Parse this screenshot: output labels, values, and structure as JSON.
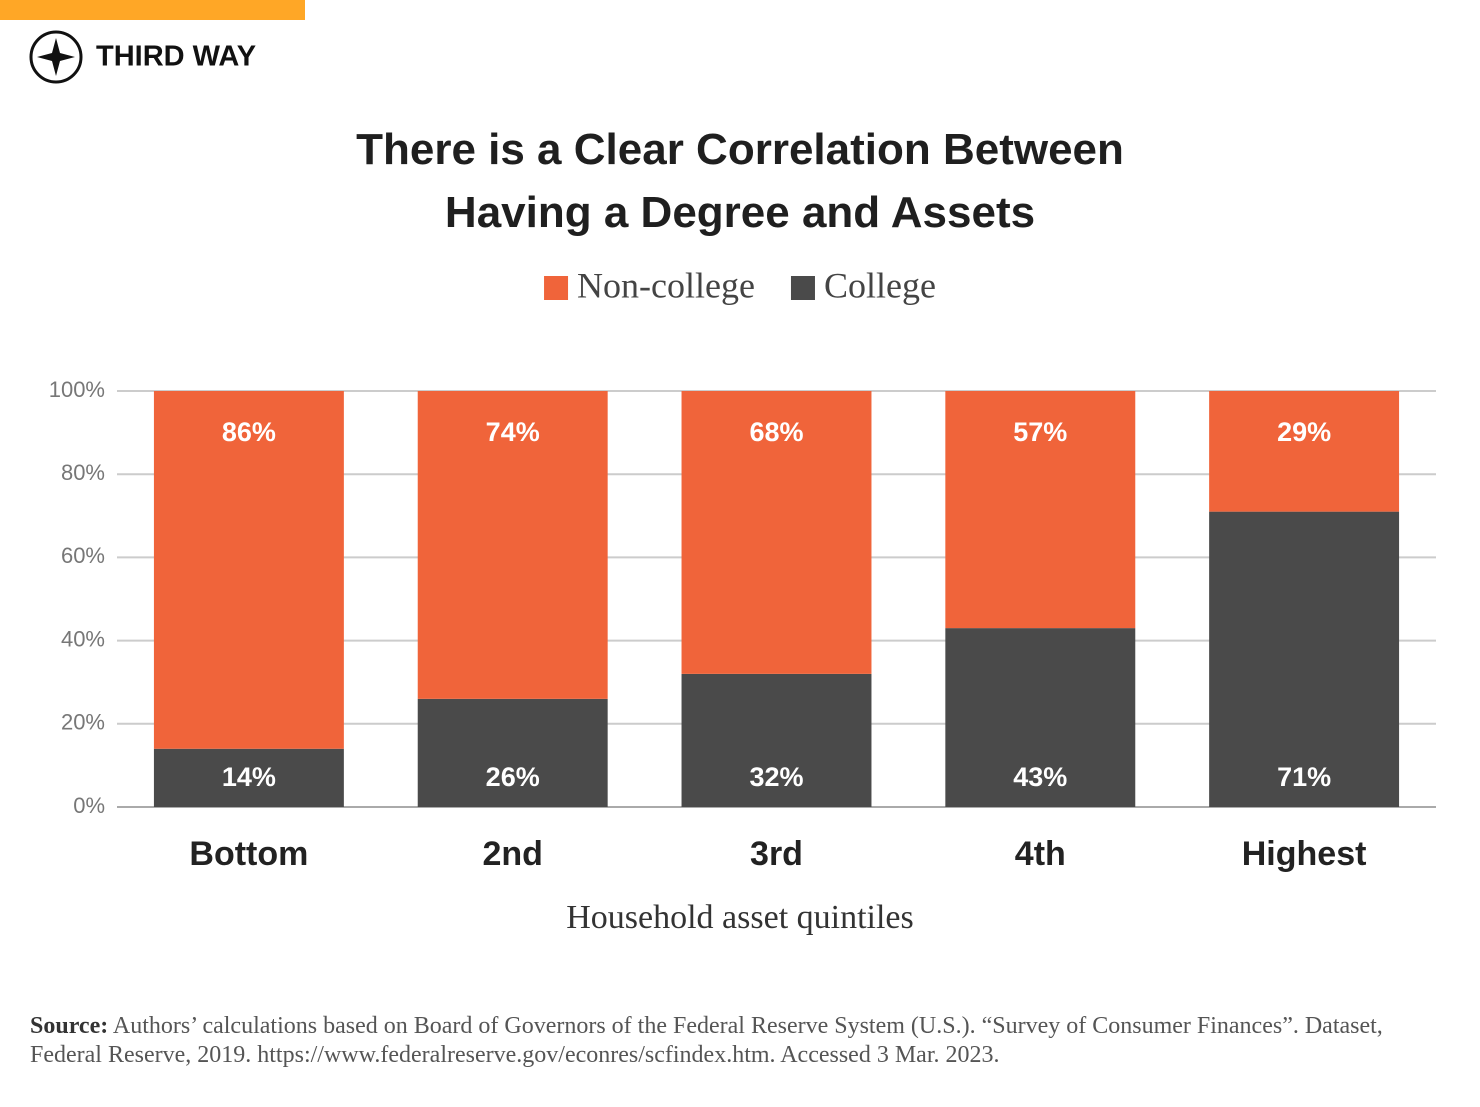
{
  "brand": "THIRD WAY",
  "chart_data": {
    "type": "stacked_bar",
    "title": "There is a Clear Correlation Between\nHaving a Degree and Assets",
    "x_label": "Household asset quintiles",
    "categories": [
      "Bottom",
      "2nd",
      "3rd",
      "4th",
      "Highest"
    ],
    "series": [
      {
        "name": "Non-college",
        "color": "#f0643a",
        "values": [
          86,
          74,
          68,
          57,
          29
        ],
        "value_labels": [
          "86%",
          "74%",
          "68%",
          "57%",
          "29%"
        ]
      },
      {
        "name": "College",
        "color": "#4a4a4a",
        "values": [
          14,
          26,
          32,
          43,
          71
        ],
        "value_labels": [
          "14%",
          "26%",
          "32%",
          "43%",
          "71%"
        ]
      }
    ],
    "ylim": [
      0,
      100
    ],
    "yticks": [
      {
        "value": 0,
        "label": "0%"
      },
      {
        "value": 20,
        "label": "20%"
      },
      {
        "value": 40,
        "label": "40%"
      },
      {
        "value": 60,
        "label": "60%"
      },
      {
        "value": 80,
        "label": "80%"
      },
      {
        "value": 100,
        "label": "100%"
      }
    ],
    "grid": true
  },
  "source_label": "Source:",
  "source": "Authors’ calculations based on Board of Governors of the Federal Reserve System (U.S.). “Survey of Consumer Finances”. Dataset, Federal Reserve, 2019. https://www.federalreserve.gov/econres/scfindex.htm. Accessed 3 Mar. 2023."
}
